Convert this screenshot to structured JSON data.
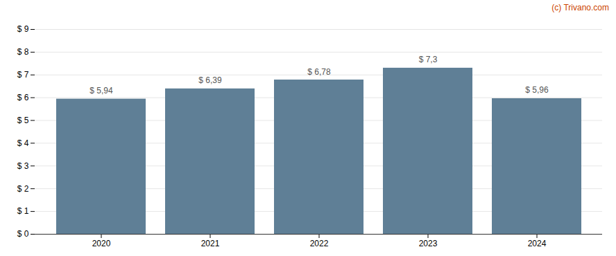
{
  "chart_data": {
    "type": "bar",
    "categories": [
      "2020",
      "2021",
      "2022",
      "2023",
      "2024"
    ],
    "values": [
      5.94,
      6.39,
      6.78,
      7.3,
      5.96
    ],
    "value_labels": [
      "$ 5,94",
      "$ 6,39",
      "$ 6,78",
      "$ 7,3",
      "$ 5,96"
    ],
    "data_labels": true,
    "color": "#5f7f96",
    "ylim": [
      0,
      9
    ],
    "yticks": [
      {
        "value": 0,
        "label": "$ 0"
      },
      {
        "value": 1,
        "label": "$ 1"
      },
      {
        "value": 2,
        "label": "$ 2"
      },
      {
        "value": 3,
        "label": "$ 3"
      },
      {
        "value": 4,
        "label": "$ 4"
      },
      {
        "value": 5,
        "label": "$ 5"
      },
      {
        "value": 6,
        "label": "$ 6"
      },
      {
        "value": 7,
        "label": "$ 7"
      },
      {
        "value": 8,
        "label": "$ 8"
      },
      {
        "value": 9,
        "label": "$ 9"
      }
    ],
    "grid": true,
    "annotations": [
      {
        "text": "(c) Trivano.com",
        "color": "#cc4400"
      }
    ]
  }
}
